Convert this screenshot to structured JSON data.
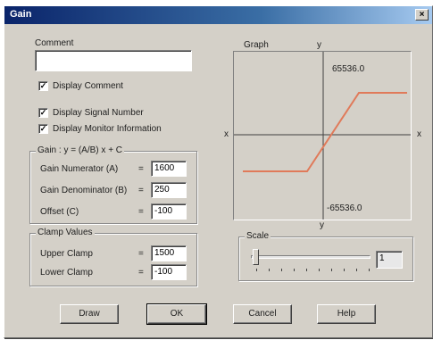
{
  "window": {
    "title": "Gain",
    "close_glyph": "×"
  },
  "comment": {
    "label": "Comment",
    "value": "",
    "display_comment": {
      "label": "Display Comment",
      "checked": true
    }
  },
  "options": {
    "display_signal_number": {
      "label": "Display Signal Number",
      "checked": true
    },
    "display_monitor_information": {
      "label": "Display Monitor Information",
      "checked": true
    }
  },
  "gain_group": {
    "label": "Gain : y = (A/B) x + C",
    "rows": [
      {
        "label": "Gain Numerator (A)",
        "eq": "=",
        "value": "1600"
      },
      {
        "label": "Gain Denominator (B)",
        "eq": "=",
        "value": "250"
      },
      {
        "label": "Offset (C)",
        "eq": "=",
        "value": "-100"
      }
    ]
  },
  "clamp_group": {
    "label": "Clamp Values",
    "rows": [
      {
        "label": "Upper Clamp",
        "eq": "=",
        "value": "1500"
      },
      {
        "label": "Lower Clamp",
        "eq": "=",
        "value": "-100"
      }
    ]
  },
  "graph": {
    "label": "Graph",
    "y_top_label": "y",
    "y_bottom_label": "y",
    "x_left_label": "x",
    "x_right_label": "x",
    "max_label": "65536.0",
    "min_label": "-65536.0",
    "curve_color": "#e07a5a"
  },
  "scale": {
    "label": "Scale",
    "value": "1",
    "slider_fraction": 0.0
  },
  "buttons": {
    "draw": "Draw",
    "ok": "OK",
    "cancel": "Cancel",
    "help": "Help"
  }
}
